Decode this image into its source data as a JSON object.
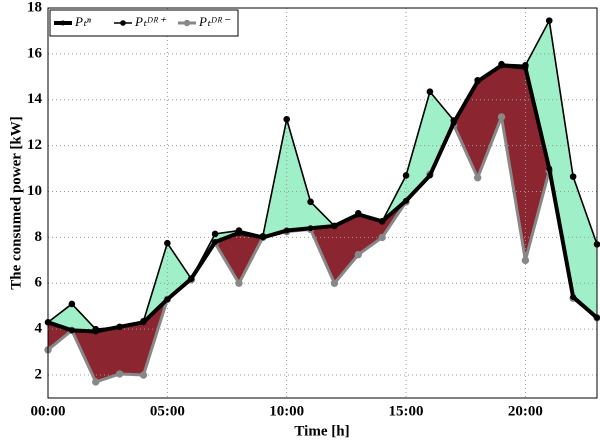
{
  "chart_data": {
    "type": "line",
    "xlabel": "Time [h]",
    "ylabel": "The consumed power [kW]",
    "x": [
      0,
      1,
      2,
      3,
      4,
      5,
      6,
      7,
      8,
      9,
      10,
      11,
      12,
      13,
      14,
      15,
      16,
      17,
      18,
      19,
      20,
      21,
      22,
      23
    ],
    "series": [
      {
        "name": "Pₜⁿ",
        "color": "#000000",
        "values": [
          4.3,
          3.95,
          3.9,
          4.1,
          4.3,
          5.3,
          6.2,
          7.8,
          8.2,
          8.0,
          8.3,
          8.4,
          8.5,
          9.0,
          8.7,
          9.6,
          10.7,
          13.0,
          14.8,
          15.5,
          15.4,
          11.0,
          5.4,
          4.5
        ]
      },
      {
        "name": "Pₜᴰᴿ⁺",
        "color": "#000000",
        "values": [
          4.3,
          5.1,
          4.0,
          4.1,
          4.35,
          7.75,
          6.2,
          8.15,
          8.3,
          8.05,
          13.15,
          9.55,
          8.5,
          9.05,
          8.7,
          10.7,
          14.35,
          13.1,
          14.85,
          15.55,
          15.5,
          17.45,
          10.65,
          7.7
        ]
      },
      {
        "name": "Pₜᴰᴿ⁻",
        "color": "#888888",
        "values": [
          3.1,
          3.95,
          1.7,
          2.05,
          2.0,
          5.3,
          6.15,
          7.75,
          6.0,
          8.0,
          8.25,
          8.35,
          6.0,
          7.25,
          8.0,
          9.55,
          10.75,
          12.9,
          10.6,
          13.25,
          7.0,
          10.9,
          5.35,
          4.5
        ]
      }
    ],
    "fill_colors": [
      "#9ff0c8",
      "#8b2530"
    ],
    "xlim": [
      0,
      23
    ],
    "xticks": [
      {
        "value": 0,
        "label": "00:00"
      },
      {
        "value": 5,
        "label": "05:00"
      },
      {
        "value": 10,
        "label": "10:00"
      },
      {
        "value": 15,
        "label": "15:00"
      },
      {
        "value": 20,
        "label": "20:00"
      }
    ],
    "ylim": [
      1,
      18
    ],
    "yticks": [
      2,
      4,
      6,
      8,
      10,
      12,
      14,
      16,
      18
    ],
    "grid": true,
    "legend": "upper left"
  }
}
